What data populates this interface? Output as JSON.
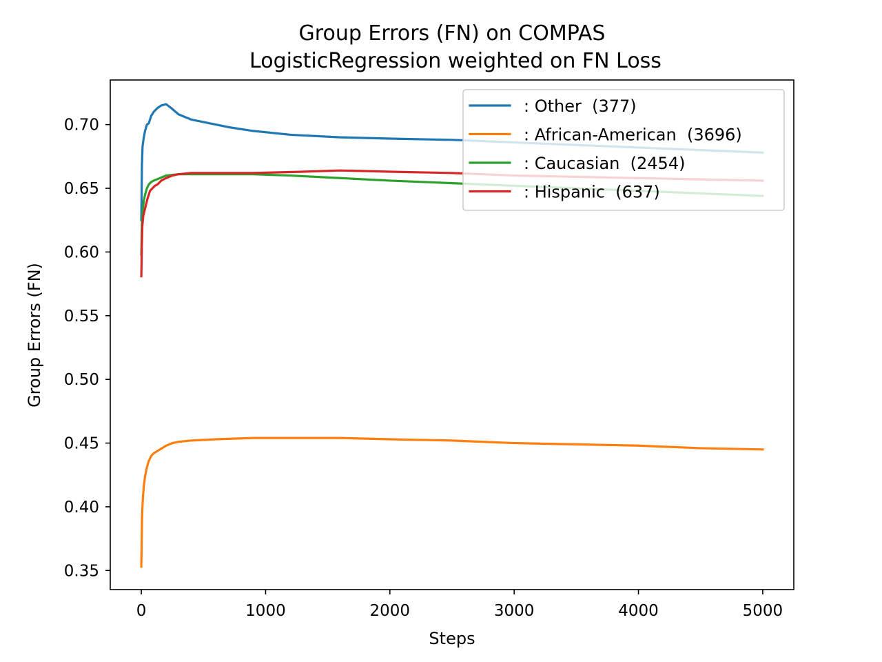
{
  "chart_data": {
    "type": "line",
    "title": "Group Errors (FN) on COMPAS",
    "subtitle": "LogisticRegression weighted on FN Loss",
    "xlabel": "Steps",
    "ylabel": "Group Errors (FN)",
    "xlim": [
      -250,
      5250
    ],
    "ylim": [
      0.335,
      0.735
    ],
    "xticks": [
      0,
      1000,
      2000,
      3000,
      4000,
      5000
    ],
    "yticks": [
      0.35,
      0.4,
      0.45,
      0.5,
      0.55,
      0.6,
      0.65,
      0.7
    ],
    "xtick_labels": [
      "0",
      "1000",
      "2000",
      "3000",
      "4000",
      "5000"
    ],
    "ytick_labels": [
      "0.35",
      "0.40",
      "0.45",
      "0.50",
      "0.55",
      "0.60",
      "0.65",
      "0.70"
    ],
    "grid": false,
    "legend_position": "top-right",
    "series": [
      {
        "name": ": Other  (377)",
        "color": "#1f77b4",
        "x": [
          0,
          5,
          10,
          20,
          30,
          45,
          60,
          80,
          100,
          130,
          160,
          200,
          240,
          300,
          400,
          550,
          700,
          900,
          1200,
          1600,
          2000,
          2500,
          3000,
          3500,
          4000,
          4500,
          5000
        ],
        "y": [
          0.625,
          0.668,
          0.683,
          0.69,
          0.695,
          0.7,
          0.701,
          0.707,
          0.71,
          0.713,
          0.715,
          0.716,
          0.713,
          0.708,
          0.704,
          0.701,
          0.698,
          0.695,
          0.692,
          0.69,
          0.689,
          0.688,
          0.686,
          0.684,
          0.682,
          0.68,
          0.678
        ]
      },
      {
        "name": ": African-American  (3696)",
        "color": "#ff7f0e",
        "x": [
          0,
          3,
          6,
          10,
          15,
          20,
          30,
          45,
          60,
          80,
          100,
          150,
          200,
          250,
          300,
          400,
          600,
          900,
          1200,
          1600,
          2000,
          2500,
          3000,
          3500,
          4000,
          4500,
          5000
        ],
        "y": [
          0.353,
          0.375,
          0.392,
          0.402,
          0.41,
          0.416,
          0.424,
          0.431,
          0.436,
          0.44,
          0.442,
          0.445,
          0.448,
          0.45,
          0.451,
          0.452,
          0.453,
          0.454,
          0.454,
          0.454,
          0.453,
          0.452,
          0.45,
          0.449,
          0.448,
          0.446,
          0.445
        ]
      },
      {
        "name": ": Caucasian  (2454)",
        "color": "#2ca02c",
        "x": [
          0,
          5,
          10,
          20,
          30,
          45,
          60,
          80,
          100,
          150,
          200,
          300,
          400,
          600,
          900,
          1200,
          1600,
          2000,
          2500,
          3000,
          3500,
          4000,
          4500,
          5000
        ],
        "y": [
          0.598,
          0.622,
          0.632,
          0.64,
          0.645,
          0.65,
          0.653,
          0.655,
          0.656,
          0.658,
          0.66,
          0.661,
          0.661,
          0.661,
          0.661,
          0.66,
          0.658,
          0.656,
          0.654,
          0.652,
          0.65,
          0.648,
          0.646,
          0.644
        ]
      },
      {
        "name": ": Hispanic  (637)",
        "color": "#d62728",
        "x": [
          0,
          4,
          8,
          15,
          25,
          35,
          50,
          70,
          90,
          110,
          130,
          160,
          200,
          250,
          300,
          400,
          500,
          700,
          900,
          1300,
          1600,
          2000,
          2500,
          3000,
          3500,
          4000,
          4500,
          5000
        ],
        "y": [
          0.581,
          0.605,
          0.62,
          0.628,
          0.632,
          0.636,
          0.642,
          0.648,
          0.65,
          0.652,
          0.653,
          0.656,
          0.658,
          0.66,
          0.661,
          0.662,
          0.662,
          0.662,
          0.662,
          0.663,
          0.664,
          0.663,
          0.662,
          0.66,
          0.659,
          0.658,
          0.657,
          0.656
        ]
      }
    ]
  }
}
